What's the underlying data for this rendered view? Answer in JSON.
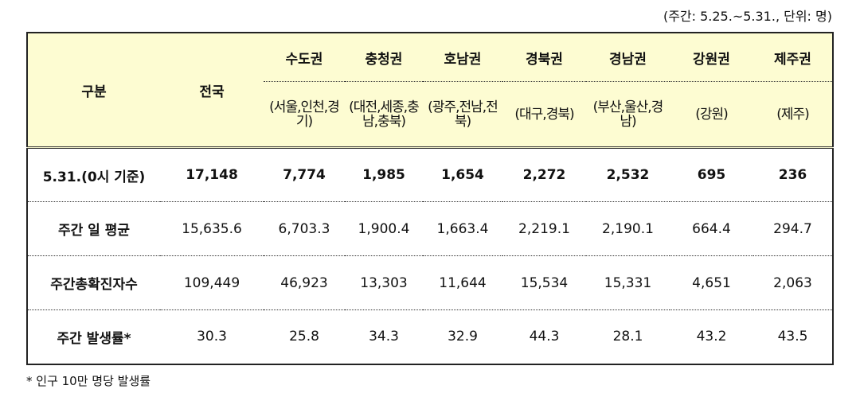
{
  "unit_note": "(주간: 5.25.~5.31., 단위: 명)",
  "table": {
    "header": {
      "label": "구분",
      "total": "전국",
      "regions": [
        {
          "name": "수도권",
          "areas": "(서울,인천,경기)"
        },
        {
          "name": "충청권",
          "areas": "(대전,세종,충남,충북)"
        },
        {
          "name": "호남권",
          "areas": "(광주,전남,전북)"
        },
        {
          "name": "경북권",
          "areas": "(대구,경북)"
        },
        {
          "name": "경남권",
          "areas": "(부산,울산,경남)"
        },
        {
          "name": "강원권",
          "areas": "(강원)"
        },
        {
          "name": "제주권",
          "areas": "(제주)"
        }
      ]
    },
    "rows": [
      [
        "5.31.(0시 기준)",
        "17,148",
        "7,774",
        "1,985",
        "1,654",
        "2,272",
        "2,532",
        "695",
        "236"
      ],
      [
        "주간 일 평균",
        "15,635.6",
        "6,703.3",
        "1,900.4",
        "1,663.4",
        "2,219.1",
        "2,190.1",
        "664.4",
        "294.7"
      ],
      [
        "주간총확진자수",
        "109,449",
        "46,923",
        "13,303",
        "11,644",
        "15,534",
        "15,331",
        "4,651",
        "2,063"
      ],
      [
        "주간 발생률*",
        "30.3",
        "25.8",
        "34.3",
        "32.9",
        "44.3",
        "28.1",
        "43.2",
        "43.5"
      ]
    ]
  },
  "footnote": "* 인구 10만 명당 발생률"
}
